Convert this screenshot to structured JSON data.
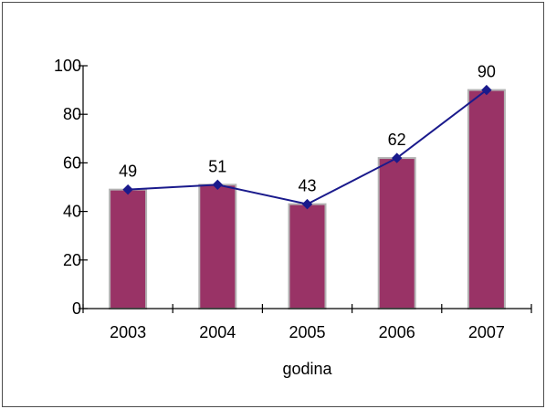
{
  "chart_data": {
    "type": "bar",
    "categories": [
      "2003",
      "2004",
      "2005",
      "2006",
      "2007"
    ],
    "values": [
      49,
      51,
      43,
      62,
      90
    ],
    "overlay_line": {
      "values": [
        49,
        51,
        43,
        62,
        90
      ],
      "marker": "diamond",
      "color": "#1a1a8c"
    },
    "data_labels": [
      "49",
      "51",
      "43",
      "62",
      "90"
    ],
    "title": "",
    "xlabel": "godina",
    "ylabel": "",
    "ylim": [
      0,
      100
    ],
    "yticks": [
      0,
      20,
      40,
      60,
      80,
      100
    ],
    "grid": false,
    "legend": "none",
    "colors": {
      "bar_fill": "#993366",
      "bar_edge": "#b3b3b3",
      "line": "#1a1a8c",
      "axis": "#000000",
      "frame": "#4d4d4d"
    }
  }
}
